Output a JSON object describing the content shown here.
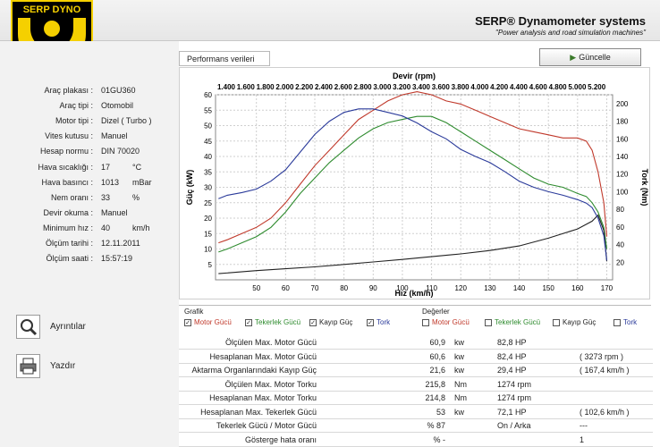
{
  "header": {
    "title": "SERP® Dynamometer systems",
    "subtitle": "\"Power analysis and road simulation machines\"",
    "logo_text": "SERP DYNO"
  },
  "vehicle": [
    {
      "label": "Araç plakası :",
      "value": "01GU360",
      "unit": ""
    },
    {
      "label": "Araç tipi :",
      "value": "Otomobil",
      "unit": ""
    },
    {
      "label": "Motor tipi :",
      "value": "Dizel ( Turbo )",
      "unit": ""
    },
    {
      "label": "Vites kutusu :",
      "value": "Manuel",
      "unit": ""
    },
    {
      "label": "Hesap normu :",
      "value": "DIN 70020",
      "unit": ""
    },
    {
      "label": "Hava sıcaklığı :",
      "value": "17",
      "unit": "°C"
    },
    {
      "label": "Hava basıncı :",
      "value": "1013",
      "unit": "mBar"
    },
    {
      "label": "Nem oranı :",
      "value": "33",
      "unit": "%"
    },
    {
      "label": "Devir okuma :",
      "value": "Manuel",
      "unit": ""
    },
    {
      "label": "Minimum hız :",
      "value": "40",
      "unit": "km/h"
    },
    {
      "label": "Ölçüm tarihi :",
      "value": "12.11.2011",
      "unit": ""
    },
    {
      "label": "Ölçüm saati :",
      "value": "15:57:19",
      "unit": ""
    }
  ],
  "buttons": {
    "details": "Ayrıntılar",
    "print": "Yazdır",
    "update": "Güncelle",
    "tab": "Performans verileri"
  },
  "graph_group": {
    "title": "Grafik",
    "items": [
      {
        "label": "Motor Gücü",
        "checked": true,
        "color": "#c0392b"
      },
      {
        "label": "Tekerlek Gücü",
        "checked": true,
        "color": "#2e8b2e"
      },
      {
        "label": "Kayıp Güç",
        "checked": true,
        "color": "#222222"
      },
      {
        "label": "Tork",
        "checked": true,
        "color": "#2a3a9a"
      }
    ]
  },
  "value_group": {
    "title": "Değerler",
    "items": [
      {
        "label": "Motor Gücü",
        "checked": false,
        "color": "#c0392b"
      },
      {
        "label": "Tekerlek Gücü",
        "checked": false,
        "color": "#2e8b2e"
      },
      {
        "label": "Kayıp Güç",
        "checked": false,
        "color": "#222222"
      },
      {
        "label": "Tork",
        "checked": false,
        "color": "#2a3a9a"
      }
    ]
  },
  "results": [
    {
      "label": "Ölçülen Max. Motor Gücü",
      "v1": "60,9",
      "u1": "kw",
      "v2": "82,8 HP",
      "v3": ""
    },
    {
      "label": "Hesaplanan Max. Motor Gücü",
      "v1": "60,6",
      "u1": "kw",
      "v2": "82,4 HP",
      "v3": "( 3273 rpm )"
    },
    {
      "label": "Aktarma Organlarındaki Kayıp Güç",
      "v1": "21,6",
      "u1": "kw",
      "v2": "29,4 HP",
      "v3": "( 167,4 km/h )"
    },
    {
      "label": "Ölçülen Max. Motor Torku",
      "v1": "215,8",
      "u1": "Nm",
      "v2": "1274 rpm",
      "v3": ""
    },
    {
      "label": "Hesaplanan Max. Motor Torku",
      "v1": "214,8",
      "u1": "Nm",
      "v2": "1274 rpm",
      "v3": ""
    },
    {
      "label": "Hesaplanan Max. Tekerlek Gücü",
      "v1": "53",
      "u1": "kw",
      "v2": "72,1 HP",
      "v3": "( 102,6 km/h )"
    },
    {
      "label": "Tekerlek Gücü / Motor Gücü",
      "v1": "% 87",
      "u1": "",
      "v2": "On / Arka",
      "v3": "---"
    },
    {
      "label": "Gösterge hata oranı",
      "v1": "% -",
      "u1": "",
      "v2": "",
      "v3": "1"
    }
  ],
  "chart_data": {
    "type": "line",
    "top_axis_label": "Devir (rpm)",
    "top_ticks": [
      "1.400",
      "1.600",
      "1.800",
      "2.000",
      "2.200",
      "2.400",
      "2.600",
      "2.800",
      "3.000",
      "3.200",
      "3.400",
      "3.600",
      "3.800",
      "4.000",
      "4.200",
      "4.400",
      "4.600",
      "4.800",
      "5.000",
      "5.200"
    ],
    "xlabel": "Hız (km/h)",
    "ylabel_left": "Güç (kW)",
    "ylabel_right": "Tork (Nm)",
    "xlim": [
      36,
      172
    ],
    "ylim_left": [
      0,
      60
    ],
    "ylim_right": [
      0,
      210
    ],
    "x_ticks": [
      50,
      60,
      70,
      80,
      90,
      100,
      110,
      120,
      130,
      140,
      150,
      160,
      170
    ],
    "y_left_ticks": [
      5,
      10,
      15,
      20,
      25,
      30,
      35,
      40,
      45,
      50,
      55,
      60
    ],
    "y_right_ticks": [
      20,
      40,
      60,
      80,
      100,
      120,
      140,
      160,
      180,
      200
    ],
    "series": [
      {
        "name": "Motor Gücü",
        "axis": "left",
        "color": "#c0392b",
        "x": [
          37,
          40,
          45,
          50,
          55,
          60,
          65,
          70,
          75,
          80,
          85,
          90,
          95,
          100,
          105,
          110,
          115,
          120,
          125,
          130,
          135,
          140,
          145,
          150,
          155,
          160,
          163,
          165,
          167,
          169,
          170
        ],
        "y": [
          12,
          13,
          15,
          17,
          20,
          25,
          31,
          37,
          42,
          47,
          52,
          55,
          58,
          60,
          61,
          60,
          58,
          57,
          55,
          53,
          51,
          49,
          48,
          47,
          46,
          46,
          45,
          42,
          35,
          25,
          14
        ]
      },
      {
        "name": "Tekerlek Gücü",
        "axis": "left",
        "color": "#2e8b2e",
        "x": [
          37,
          40,
          45,
          50,
          55,
          60,
          65,
          70,
          75,
          80,
          85,
          90,
          95,
          100,
          105,
          110,
          115,
          120,
          125,
          130,
          135,
          140,
          145,
          150,
          155,
          160,
          163,
          165,
          167,
          169,
          170
        ],
        "y": [
          9,
          10,
          12,
          14,
          17,
          22,
          28,
          33,
          38,
          42,
          46,
          49,
          51,
          52,
          53,
          53,
          51,
          48,
          45,
          42,
          39,
          36,
          33,
          31,
          30,
          28,
          27,
          25,
          22,
          17,
          10
        ]
      },
      {
        "name": "Kayıp Güç",
        "axis": "left",
        "color": "#222222",
        "x": [
          37,
          50,
          60,
          70,
          80,
          90,
          100,
          110,
          120,
          130,
          140,
          150,
          160,
          165,
          167,
          169,
          170
        ],
        "y": [
          2,
          3,
          3.6,
          4.2,
          5,
          5.8,
          6.6,
          7.5,
          8.4,
          9.5,
          11,
          13.5,
          16.5,
          19,
          21,
          16,
          6
        ]
      },
      {
        "name": "Tork",
        "axis": "right",
        "color": "#2a3a9a",
        "x": [
          37,
          40,
          45,
          50,
          55,
          60,
          65,
          70,
          75,
          80,
          85,
          90,
          95,
          100,
          105,
          110,
          115,
          120,
          125,
          130,
          135,
          140,
          145,
          150,
          155,
          160,
          163,
          165,
          167,
          169,
          170
        ],
        "y": [
          92,
          96,
          99,
          103,
          112,
          125,
          145,
          165,
          180,
          190,
          194,
          194,
          190,
          186,
          178,
          168,
          160,
          148,
          140,
          133,
          123,
          112,
          105,
          100,
          96,
          91,
          87,
          82,
          70,
          50,
          22
        ]
      }
    ]
  }
}
